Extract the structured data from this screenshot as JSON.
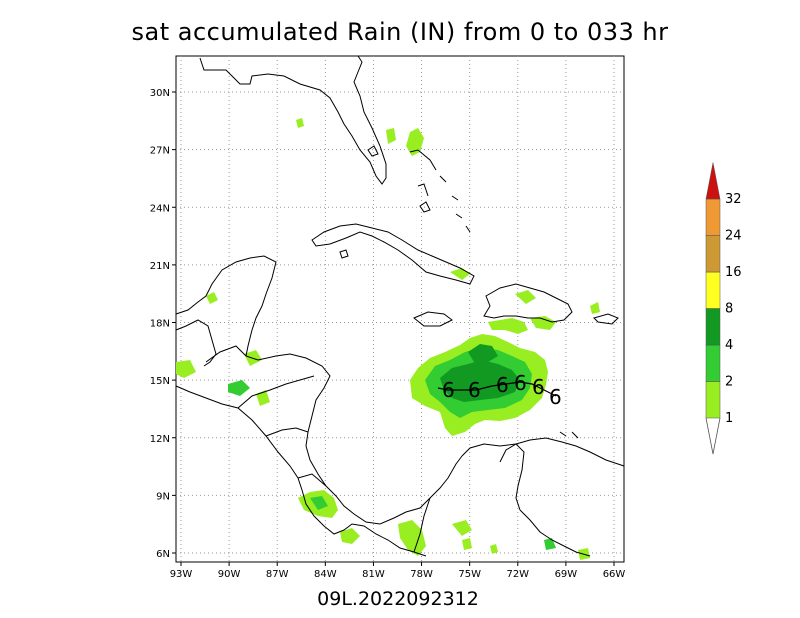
{
  "title": "sat accumulated Rain (IN) from 0 to 033 hr",
  "footer": "09L.2022092312",
  "map": {
    "lon_ticks": [
      "93W",
      "90W",
      "87W",
      "84W",
      "81W",
      "78W",
      "75W",
      "72W",
      "69W",
      "66W"
    ],
    "lat_ticks": [
      "30N",
      "27N",
      "24N",
      "21N",
      "18N",
      "15N",
      "12N",
      "9N",
      "6N"
    ]
  },
  "legend": {
    "bins": [
      {
        "label": "1",
        "color": "#99ee22"
      },
      {
        "label": "2",
        "color": "#33cc33"
      },
      {
        "label": "4",
        "color": "#119922"
      },
      {
        "label": "8",
        "color": "#ffff22"
      },
      {
        "label": "16",
        "color": "#cc9933"
      },
      {
        "label": "24",
        "color": "#ee9933"
      },
      {
        "label": "32",
        "color": "#cc1111"
      }
    ]
  },
  "track_symbol": "6"
}
